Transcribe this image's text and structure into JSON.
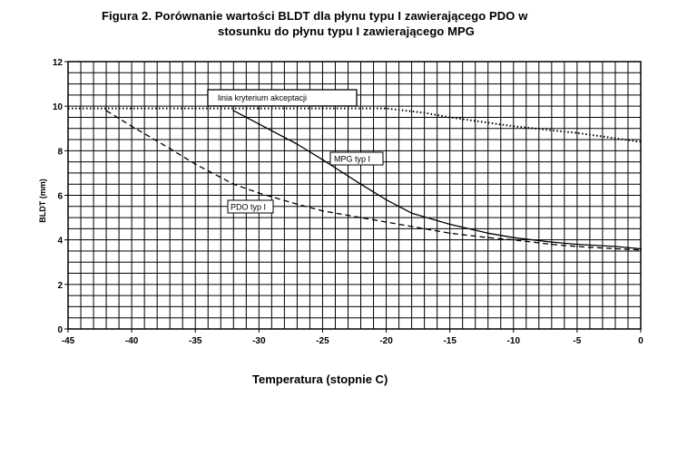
{
  "page": {
    "title_line1": "Figura 2.  Porównanie wartości BLDT dla płynu typu I zawierającego PDO w",
    "title_line2": "stosunku do płynu typu I zawierającego MPG"
  },
  "chart_data": {
    "type": "line",
    "xlabel": "Temperatura (stopnie C)",
    "ylabel": "BLDT (mm)",
    "xlim": [
      -45,
      0
    ],
    "ylim": [
      0,
      12
    ],
    "xticks": [
      -45,
      -40,
      -35,
      -30,
      -25,
      -20,
      -15,
      -10,
      -5,
      0
    ],
    "yticks": [
      0,
      2,
      4,
      6,
      8,
      10,
      12
    ],
    "grid": true,
    "annotations": {
      "criterion": "linia kryterium akceptacji",
      "mpg": "MPG typ I",
      "pdo": "PDO typ I"
    },
    "series": [
      {
        "key": "criterion",
        "style": "dotted",
        "x": [
          -45,
          -40,
          -35,
          -30,
          -25,
          -20,
          -17,
          -15,
          -10,
          -5,
          0
        ],
        "y": [
          9.9,
          9.9,
          9.9,
          9.9,
          9.9,
          9.9,
          9.7,
          9.5,
          9.1,
          8.8,
          8.4
        ]
      },
      {
        "key": "mpg",
        "style": "solid",
        "x": [
          -32,
          -30,
          -27,
          -25,
          -22,
          -20,
          -18,
          -15,
          -12,
          -10,
          -7,
          -5,
          -2,
          0
        ],
        "y": [
          9.8,
          9.2,
          8.3,
          7.6,
          6.5,
          5.8,
          5.2,
          4.7,
          4.3,
          4.1,
          3.9,
          3.8,
          3.7,
          3.6
        ]
      },
      {
        "key": "pdo",
        "style": "dashed",
        "x": [
          -42,
          -40,
          -37,
          -35,
          -32,
          -30,
          -27,
          -25,
          -22,
          -20,
          -17,
          -15,
          -12,
          -10,
          -7,
          -5,
          -2,
          0
        ],
        "y": [
          9.8,
          9.1,
          8.1,
          7.4,
          6.5,
          6.1,
          5.6,
          5.3,
          5.0,
          4.8,
          4.5,
          4.3,
          4.1,
          4.0,
          3.8,
          3.7,
          3.6,
          3.55
        ]
      }
    ]
  }
}
